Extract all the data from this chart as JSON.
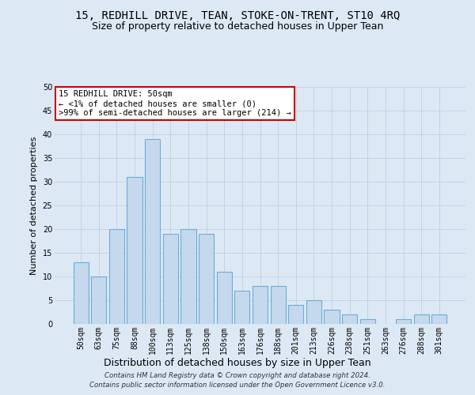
{
  "title": "15, REDHILL DRIVE, TEAN, STOKE-ON-TRENT, ST10 4RQ",
  "subtitle": "Size of property relative to detached houses in Upper Tean",
  "xlabel": "Distribution of detached houses by size in Upper Tean",
  "ylabel": "Number of detached properties",
  "footer_line1": "Contains HM Land Registry data © Crown copyright and database right 2024.",
  "footer_line2": "Contains public sector information licensed under the Open Government Licence v3.0.",
  "bar_labels": [
    "50sqm",
    "63sqm",
    "75sqm",
    "88sqm",
    "100sqm",
    "113sqm",
    "125sqm",
    "138sqm",
    "150sqm",
    "163sqm",
    "176sqm",
    "188sqm",
    "201sqm",
    "213sqm",
    "226sqm",
    "238sqm",
    "251sqm",
    "263sqm",
    "276sqm",
    "288sqm",
    "301sqm"
  ],
  "bar_values": [
    13,
    10,
    20,
    31,
    39,
    19,
    20,
    19,
    11,
    7,
    8,
    8,
    4,
    5,
    3,
    2,
    1,
    0,
    1,
    2,
    2
  ],
  "bar_color": "#c5d8ed",
  "bar_edge_color": "#6aaed6",
  "annotation_title": "15 REDHILL DRIVE: 50sqm",
  "annotation_line2": "← <1% of detached houses are smaller (0)",
  "annotation_line3": ">99% of semi-detached houses are larger (214) →",
  "annotation_box_color": "#ffffff",
  "annotation_border_color": "#cc0000",
  "ylim": [
    0,
    50
  ],
  "yticks": [
    0,
    5,
    10,
    15,
    20,
    25,
    30,
    35,
    40,
    45,
    50
  ],
  "grid_color": "#c0cfe0",
  "bg_color": "#dce9f5",
  "title_fontsize": 10,
  "subtitle_fontsize": 9,
  "xlabel_fontsize": 9,
  "ylabel_fontsize": 8,
  "tick_fontsize": 7,
  "annotation_fontsize": 7.5,
  "footer_fontsize": 6.2
}
